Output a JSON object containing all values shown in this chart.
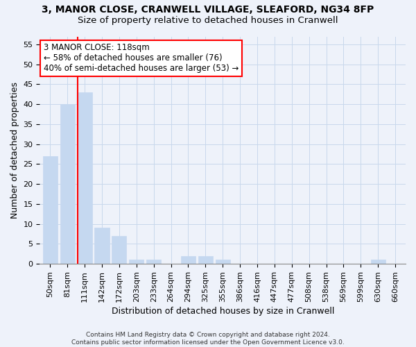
{
  "title_line1": "3, MANOR CLOSE, CRANWELL VILLAGE, SLEAFORD, NG34 8FP",
  "title_line2": "Size of property relative to detached houses in Cranwell",
  "xlabel": "Distribution of detached houses by size in Cranwell",
  "ylabel": "Number of detached properties",
  "bar_labels": [
    "50sqm",
    "81sqm",
    "111sqm",
    "142sqm",
    "172sqm",
    "203sqm",
    "233sqm",
    "264sqm",
    "294sqm",
    "325sqm",
    "355sqm",
    "386sqm",
    "416sqm",
    "447sqm",
    "477sqm",
    "508sqm",
    "538sqm",
    "569sqm",
    "599sqm",
    "630sqm",
    "660sqm"
  ],
  "bar_values": [
    27,
    40,
    43,
    9,
    7,
    1,
    1,
    0,
    2,
    2,
    1,
    0,
    0,
    0,
    0,
    0,
    0,
    0,
    0,
    1,
    0
  ],
  "bar_color": "#c5d8f0",
  "bar_edgecolor": "#c5d8f0",
  "grid_color": "#c8d8ec",
  "background_color": "#eef2fa",
  "vline_x": 1.575,
  "vline_color": "red",
  "annotation_text": "3 MANOR CLOSE: 118sqm\n← 58% of detached houses are smaller (76)\n40% of semi-detached houses are larger (53) →",
  "annotation_box_color": "white",
  "annotation_box_edgecolor": "red",
  "yticks": [
    0,
    5,
    10,
    15,
    20,
    25,
    30,
    35,
    40,
    45,
    50,
    55
  ],
  "ylim": [
    0,
    57
  ],
  "footnote": "Contains HM Land Registry data © Crown copyright and database right 2024.\nContains public sector information licensed under the Open Government Licence v3.0.",
  "title_fontsize": 10,
  "subtitle_fontsize": 9.5,
  "axis_label_fontsize": 9,
  "tick_fontsize": 8,
  "annotation_fontsize": 8.5
}
